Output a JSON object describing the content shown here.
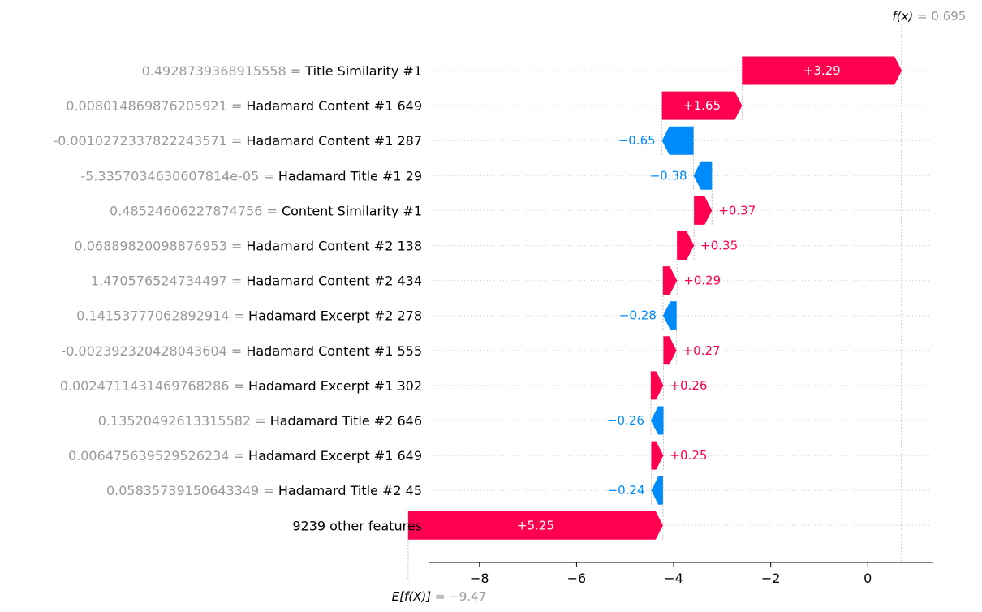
{
  "chart_data": {
    "type": "waterfall",
    "base_value": -9.47,
    "output_value": 0.695,
    "fx_label": "f(x)",
    "fx_value_text": " = 0.695",
    "ex_label": "E[f(X)]",
    "ex_value_text": " = −9.47",
    "xlim": [
      -9.05,
      1.35
    ],
    "xticks": [
      -8,
      -6,
      -4,
      -2,
      0
    ],
    "xtick_labels": [
      "−8",
      "−6",
      "−4",
      "−2",
      "0"
    ],
    "positive_color": "#ff0051",
    "negative_color": "#008bfb",
    "features": [
      {
        "value": "0.4928739368915558",
        "name": "Title Similarity #1",
        "contribution": 3.29,
        "label": "+3.29"
      },
      {
        "value": "0.008014869876205921",
        "name": "Hadamard Content #1 649",
        "contribution": 1.65,
        "label": "+1.65"
      },
      {
        "value": "-0.0010272337822243571",
        "name": "Hadamard Content #1 287",
        "contribution": -0.65,
        "label": "−0.65"
      },
      {
        "value": "-5.3357034630607814e-05",
        "name": "Hadamard Title #1 29",
        "contribution": -0.38,
        "label": "−0.38"
      },
      {
        "value": "0.48524606227874756",
        "name": "Content Similarity #1",
        "contribution": 0.37,
        "label": "+0.37"
      },
      {
        "value": "0.06889820098876953",
        "name": "Hadamard Content #2 138",
        "contribution": 0.35,
        "label": "+0.35"
      },
      {
        "value": "1.470576524734497",
        "name": "Hadamard Content #2 434",
        "contribution": 0.29,
        "label": "+0.29"
      },
      {
        "value": "0.14153777062892914",
        "name": "Hadamard Excerpt #2 278",
        "contribution": -0.28,
        "label": "−0.28"
      },
      {
        "value": "-0.002392320428043604",
        "name": "Hadamard Content #1 555",
        "contribution": 0.27,
        "label": "+0.27"
      },
      {
        "value": "0.0024711431469768286",
        "name": "Hadamard Excerpt #1 302",
        "contribution": 0.26,
        "label": "+0.26"
      },
      {
        "value": "0.13520492613315582",
        "name": "Hadamard Title #2 646",
        "contribution": -0.26,
        "label": "−0.26"
      },
      {
        "value": "0.006475639529526234",
        "name": "Hadamard Excerpt #1 649",
        "contribution": 0.25,
        "label": "+0.25"
      },
      {
        "value": "0.05835739150643349",
        "name": "Hadamard Title #2 45",
        "contribution": -0.24,
        "label": "−0.24"
      },
      {
        "value": "",
        "name": "9239 other features",
        "contribution": 5.25,
        "label": "+5.25"
      }
    ]
  }
}
